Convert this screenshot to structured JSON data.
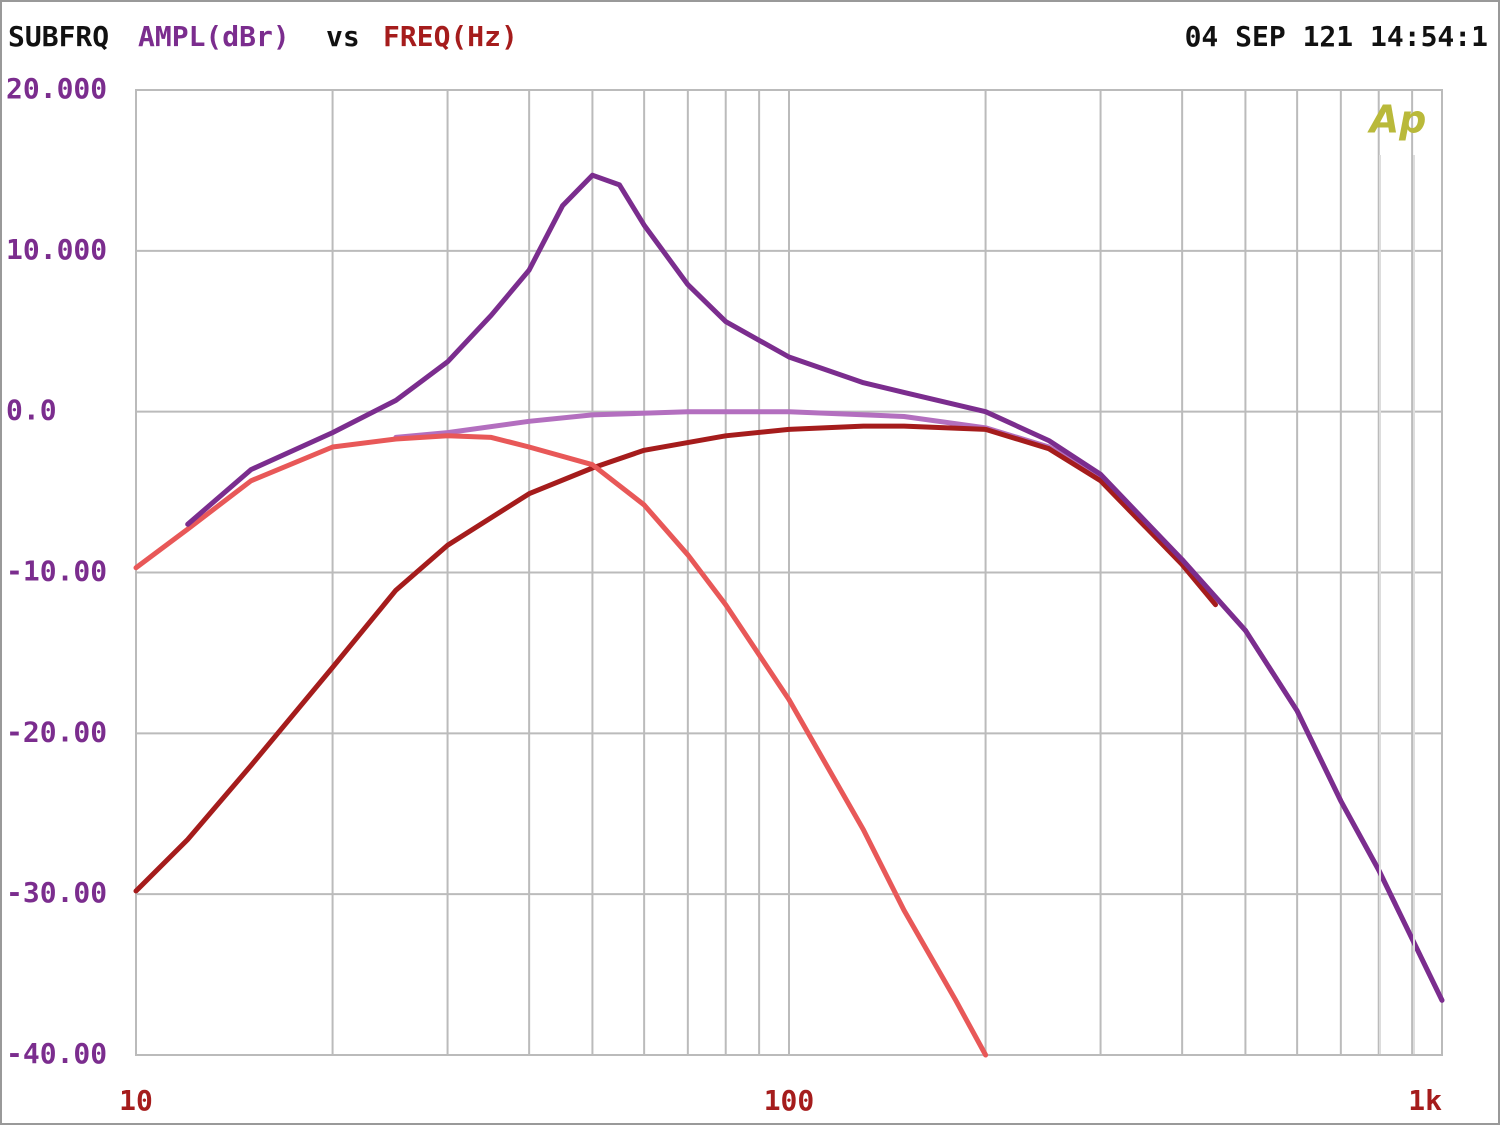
{
  "chart_data": {
    "type": "line",
    "title": "SUBFRQ",
    "ylabel": "AMPL(dBr)",
    "title_joiner": "vs",
    "xlabel": "FREQ(Hz)",
    "timestamp": "04 SEP 121 14:54:1",
    "logo": "Ap",
    "xlog": true,
    "grid": true,
    "xlim": [
      10,
      1000
    ],
    "xticks": [
      10,
      100,
      {
        "value": 1000,
        "label": "1k"
      }
    ],
    "xminor": [
      20,
      30,
      40,
      50,
      60,
      70,
      80,
      90,
      200,
      300,
      400,
      500,
      600,
      700,
      800,
      900
    ],
    "ylim": [
      -40,
      20
    ],
    "yticks": [
      {
        "value": 20,
        "label": "20.000"
      },
      {
        "value": 10,
        "label": "10.000"
      },
      {
        "value": 0,
        "label": "0.0"
      },
      {
        "value": -10,
        "label": "-10.00"
      },
      {
        "value": -20,
        "label": "-20.00"
      },
      {
        "value": -30,
        "label": "-30.00"
      },
      {
        "value": -40,
        "label": "-40.00"
      }
    ],
    "series": [
      {
        "color": "#b36fbf",
        "x": [
          25,
          30,
          40,
          50,
          70,
          100,
          150,
          200,
          250,
          300,
          400,
          500,
          600,
          700,
          800,
          1000
        ],
        "values": [
          -1.6,
          -1.3,
          -0.6,
          -0.2,
          0,
          0,
          -0.3,
          -1.0,
          -2.2,
          -4.0,
          -9.2,
          -13.6,
          -18.6,
          -24.2,
          -28.5,
          -36.6
        ]
      },
      {
        "color": "#a51c1c",
        "x": [
          10,
          12,
          15,
          20,
          25,
          30,
          40,
          50,
          60,
          80,
          100,
          130,
          150,
          200,
          250,
          300,
          400,
          450
        ],
        "values": [
          -29.8,
          -26.6,
          -22,
          -15.9,
          -11.1,
          -8.3,
          -5.1,
          -3.5,
          -2.4,
          -1.5,
          -1.1,
          -0.9,
          -0.9,
          -1.1,
          -2.3,
          -4.3,
          -9.5,
          -12.0
        ]
      },
      {
        "color": "#e85858",
        "x": [
          10,
          12,
          15,
          20,
          25,
          30,
          35,
          40,
          50,
          60,
          70,
          80,
          100,
          130,
          150,
          180,
          200
        ],
        "values": [
          -9.7,
          -7.3,
          -4.3,
          -2.2,
          -1.7,
          -1.5,
          -1.6,
          -2.2,
          -3.3,
          -5.8,
          -8.9,
          -12.0,
          -17.9,
          -26.0,
          -31.0,
          -36.6,
          -40
        ]
      },
      {
        "color": "#7b2d8e",
        "x": [
          12,
          15,
          20,
          25,
          30,
          35,
          40,
          45,
          50,
          55,
          60,
          70,
          80,
          100,
          130,
          150,
          200,
          250,
          300,
          400,
          500,
          600,
          700,
          800,
          1000
        ],
        "values": [
          -7,
          -3.6,
          -1.3,
          0.7,
          3.1,
          6.0,
          8.8,
          12.8,
          14.7,
          14.1,
          11.6,
          7.9,
          5.6,
          3.4,
          1.8,
          1.2,
          0,
          -1.8,
          -3.9,
          -9.2,
          -13.6,
          -18.6,
          -24.2,
          -28.5,
          -36.6
        ]
      }
    ]
  }
}
